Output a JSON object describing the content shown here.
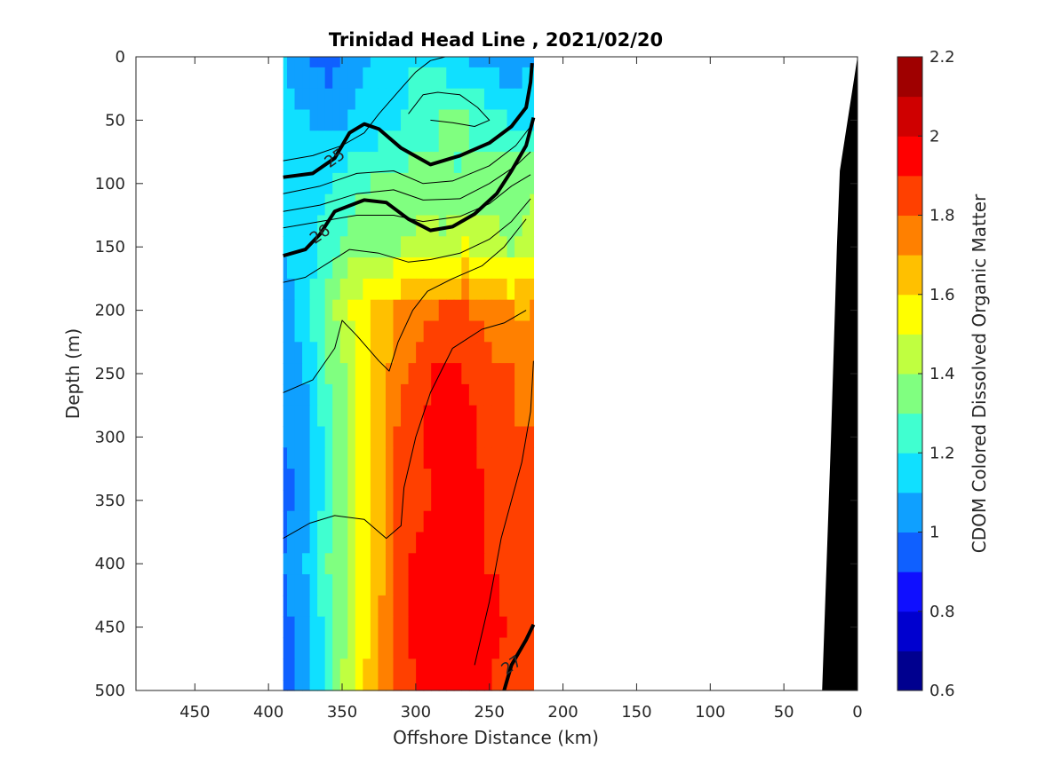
{
  "chart_data": {
    "type": "heatmap",
    "title": "Trinidad Head Line , 2021/02/20",
    "xlabel": "Offshore Distance (km)",
    "ylabel": "Depth (m)",
    "colorbar_label": "CDOM Colored Dissolved Organic Matter",
    "xlim": [
      490,
      0
    ],
    "ylim": [
      0,
      500
    ],
    "clim": [
      0.6,
      2.2
    ],
    "x_reversed": true,
    "y_reversed": true,
    "x_ticks": [
      450,
      400,
      350,
      300,
      250,
      200,
      150,
      100,
      50,
      0
    ],
    "y_ticks": [
      0,
      50,
      100,
      150,
      200,
      250,
      300,
      350,
      400,
      450,
      500
    ],
    "colorbar_ticks": [
      0.6,
      0.8,
      1,
      1.2,
      1.4,
      1.6,
      1.8,
      2,
      2.2
    ],
    "colorbar_levels": [
      "#00008f",
      "#0000cf",
      "#0f0fff",
      "#0f60ff",
      "#0fa0ff",
      "#10e0ff",
      "#40ffd0",
      "#80ff80",
      "#c0ff40",
      "#ffff00",
      "#ffc000",
      "#ff8000",
      "#ff4000",
      "#ff0000",
      "#cf0000",
      "#9f0000"
    ],
    "colormap": "jet",
    "data_extent": {
      "x": [
        390,
        220
      ],
      "depth": [
        0,
        500
      ]
    },
    "cdom_grid": {
      "x": [
        390,
        375,
        360,
        345,
        330,
        315,
        300,
        285,
        270,
        255,
        240,
        225
      ],
      "depth": [
        0,
        50,
        100,
        150,
        200,
        250,
        300,
        350,
        400,
        450,
        500
      ],
      "values": [
        [
          1.1,
          1.0,
          0.95,
          1.05,
          1.1,
          1.15,
          1.2,
          1.15,
          1.1,
          1.05,
          1.0,
          1.1
        ],
        [
          1.15,
          1.1,
          1.05,
          1.1,
          1.15,
          1.2,
          1.25,
          1.3,
          1.3,
          1.25,
          1.2,
          1.2
        ],
        [
          1.1,
          1.15,
          1.2,
          1.25,
          1.3,
          1.3,
          1.35,
          1.3,
          1.3,
          1.35,
          1.35,
          1.4
        ],
        [
          1.1,
          1.15,
          1.25,
          1.35,
          1.4,
          1.4,
          1.45,
          1.45,
          1.5,
          1.45,
          1.4,
          1.45
        ],
        [
          1.05,
          1.15,
          1.35,
          1.5,
          1.6,
          1.7,
          1.75,
          1.8,
          1.8,
          1.75,
          1.7,
          1.7
        ],
        [
          1.0,
          1.1,
          1.3,
          1.45,
          1.6,
          1.75,
          1.85,
          1.95,
          1.9,
          1.85,
          1.8,
          1.75
        ],
        [
          1.0,
          1.05,
          1.25,
          1.45,
          1.6,
          1.8,
          1.9,
          1.95,
          1.95,
          1.85,
          1.8,
          1.8
        ],
        [
          0.95,
          1.05,
          1.25,
          1.45,
          1.6,
          1.8,
          1.85,
          1.95,
          1.95,
          1.9,
          1.85,
          1.8
        ],
        [
          1.0,
          1.1,
          1.3,
          1.45,
          1.6,
          1.85,
          1.95,
          2.0,
          1.95,
          1.9,
          1.85,
          1.8
        ],
        [
          0.95,
          1.05,
          1.25,
          1.45,
          1.65,
          1.85,
          1.95,
          2.0,
          2.0,
          1.95,
          1.9,
          1.85
        ],
        [
          0.9,
          1.05,
          1.25,
          1.5,
          1.7,
          1.85,
          1.9,
          1.95,
          1.95,
          1.9,
          1.85,
          1.8
        ]
      ]
    },
    "contours": [
      {
        "label": "25",
        "bold": true,
        "points": [
          [
            390,
            95
          ],
          [
            370,
            92
          ],
          [
            355,
            80
          ],
          [
            345,
            60
          ],
          [
            335,
            53
          ],
          [
            325,
            57
          ],
          [
            310,
            72
          ],
          [
            290,
            85
          ],
          [
            270,
            78
          ],
          [
            250,
            68
          ],
          [
            235,
            55
          ],
          [
            225,
            40
          ],
          [
            222,
            20
          ],
          [
            221,
            5
          ]
        ]
      },
      {
        "label": "26",
        "bold": true,
        "points": [
          [
            390,
            157
          ],
          [
            375,
            152
          ],
          [
            365,
            140
          ],
          [
            355,
            122
          ],
          [
            335,
            113
          ],
          [
            320,
            115
          ],
          [
            305,
            128
          ],
          [
            290,
            137
          ],
          [
            275,
            134
          ],
          [
            260,
            124
          ],
          [
            245,
            108
          ],
          [
            235,
            90
          ],
          [
            225,
            70
          ],
          [
            220,
            48
          ]
        ]
      },
      {
        "label": "27",
        "bold": true,
        "points": [
          [
            240,
            500
          ],
          [
            235,
            480
          ],
          [
            225,
            460
          ],
          [
            220,
            448
          ]
        ]
      },
      {
        "label": "",
        "bold": false,
        "points": [
          [
            390,
            82
          ],
          [
            370,
            78
          ],
          [
            350,
            70
          ],
          [
            335,
            60
          ],
          [
            325,
            45
          ],
          [
            310,
            25
          ],
          [
            300,
            12
          ],
          [
            290,
            3
          ],
          [
            280,
            0
          ]
        ]
      },
      {
        "label": "",
        "bold": false,
        "points": [
          [
            390,
            108
          ],
          [
            365,
            102
          ],
          [
            340,
            92
          ],
          [
            315,
            90
          ],
          [
            295,
            100
          ],
          [
            275,
            98
          ],
          [
            250,
            86
          ],
          [
            232,
            70
          ],
          [
            222,
            55
          ]
        ]
      },
      {
        "label": "",
        "bold": false,
        "points": [
          [
            390,
            122
          ],
          [
            365,
            117
          ],
          [
            340,
            108
          ],
          [
            315,
            105
          ],
          [
            295,
            113
          ],
          [
            270,
            112
          ],
          [
            250,
            100
          ],
          [
            232,
            86
          ],
          [
            222,
            75
          ]
        ]
      },
      {
        "label": "",
        "bold": false,
        "points": [
          [
            390,
            135
          ],
          [
            365,
            130
          ],
          [
            340,
            125
          ],
          [
            315,
            125
          ],
          [
            295,
            130
          ],
          [
            270,
            126
          ],
          [
            250,
            116
          ],
          [
            235,
            102
          ],
          [
            222,
            93
          ]
        ]
      },
      {
        "label": "",
        "bold": false,
        "points": [
          [
            390,
            178
          ],
          [
            375,
            174
          ],
          [
            360,
            163
          ],
          [
            345,
            152
          ],
          [
            325,
            155
          ],
          [
            305,
            162
          ],
          [
            290,
            160
          ],
          [
            270,
            155
          ],
          [
            250,
            144
          ],
          [
            235,
            130
          ],
          [
            222,
            112
          ]
        ]
      },
      {
        "label": "",
        "bold": false,
        "points": [
          [
            390,
            380
          ],
          [
            372,
            368
          ],
          [
            355,
            362
          ],
          [
            335,
            365
          ],
          [
            320,
            380
          ],
          [
            310,
            370
          ],
          [
            308,
            340
          ],
          [
            300,
            300
          ],
          [
            290,
            265
          ],
          [
            275,
            230
          ],
          [
            255,
            215
          ],
          [
            240,
            210
          ],
          [
            225,
            200
          ]
        ]
      },
      {
        "label": "",
        "bold": false,
        "points": [
          [
            390,
            265
          ],
          [
            370,
            255
          ],
          [
            355,
            230
          ],
          [
            350,
            208
          ],
          [
            340,
            220
          ],
          [
            325,
            240
          ],
          [
            318,
            248
          ],
          [
            312,
            225
          ],
          [
            302,
            200
          ],
          [
            292,
            185
          ],
          [
            275,
            175
          ],
          [
            255,
            165
          ],
          [
            240,
            150
          ],
          [
            225,
            128
          ]
        ]
      },
      {
        "label": "",
        "bold": false,
        "points": [
          [
            305,
            45
          ],
          [
            295,
            30
          ],
          [
            285,
            28
          ],
          [
            270,
            30
          ],
          [
            258,
            40
          ],
          [
            250,
            50
          ],
          [
            260,
            55
          ],
          [
            275,
            52
          ],
          [
            290,
            50
          ]
        ]
      },
      {
        "label": "",
        "bold": false,
        "points": [
          [
            260,
            480
          ],
          [
            250,
            430
          ],
          [
            242,
            380
          ],
          [
            235,
            350
          ],
          [
            228,
            320
          ],
          [
            222,
            280
          ],
          [
            220,
            240
          ]
        ]
      }
    ],
    "shelf": {
      "color": "#000000",
      "points": [
        [
          0,
          0
        ],
        [
          8,
          60
        ],
        [
          12,
          90
        ],
        [
          14,
          150
        ],
        [
          18,
          300
        ],
        [
          24,
          500
        ],
        [
          0,
          500
        ]
      ]
    }
  }
}
